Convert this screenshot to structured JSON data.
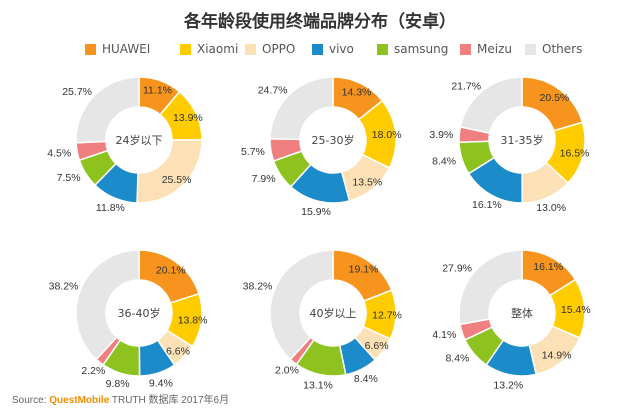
{
  "title": "各年龄段使用终端品牌分布（安卓）",
  "source": {
    "prefix": "Source: ",
    "brand": "QuestMobile",
    "suffix": " TRUTH 数据库 2017年6月"
  },
  "colors": {
    "HUAWEI": "#F7941D",
    "Xiaomi": "#FFCC00",
    "OPPO": "#FCE1B6",
    "vivo": "#1B8BC9",
    "samsung": "#8DC21F",
    "Meizu": "#F08080",
    "Others": "#E6E6E6"
  },
  "chart_data": {
    "type": "pie",
    "variant": "donut",
    "categories": [
      "HUAWEI",
      "Xiaomi",
      "OPPO",
      "vivo",
      "samsung",
      "Meizu",
      "Others"
    ],
    "charts": [
      {
        "name": "24岁以下",
        "values": [
          11.1,
          13.9,
          25.5,
          11.8,
          7.5,
          4.5,
          25.7
        ]
      },
      {
        "name": "25-30岁",
        "values": [
          14.3,
          18.0,
          13.5,
          15.9,
          7.9,
          5.7,
          24.7
        ]
      },
      {
        "name": "31-35岁",
        "values": [
          20.5,
          16.5,
          13.0,
          16.1,
          8.4,
          3.9,
          21.7
        ]
      },
      {
        "name": "36-40岁",
        "values": [
          20.1,
          13.8,
          6.6,
          9.4,
          9.8,
          2.2,
          38.2
        ]
      },
      {
        "name": "40岁以上",
        "values": [
          19.1,
          12.7,
          6.6,
          8.4,
          13.1,
          2.0,
          38.2
        ]
      },
      {
        "name": "整体",
        "values": [
          16.1,
          15.4,
          14.9,
          13.2,
          8.4,
          4.1,
          27.9
        ]
      }
    ],
    "legend_position": "top"
  }
}
